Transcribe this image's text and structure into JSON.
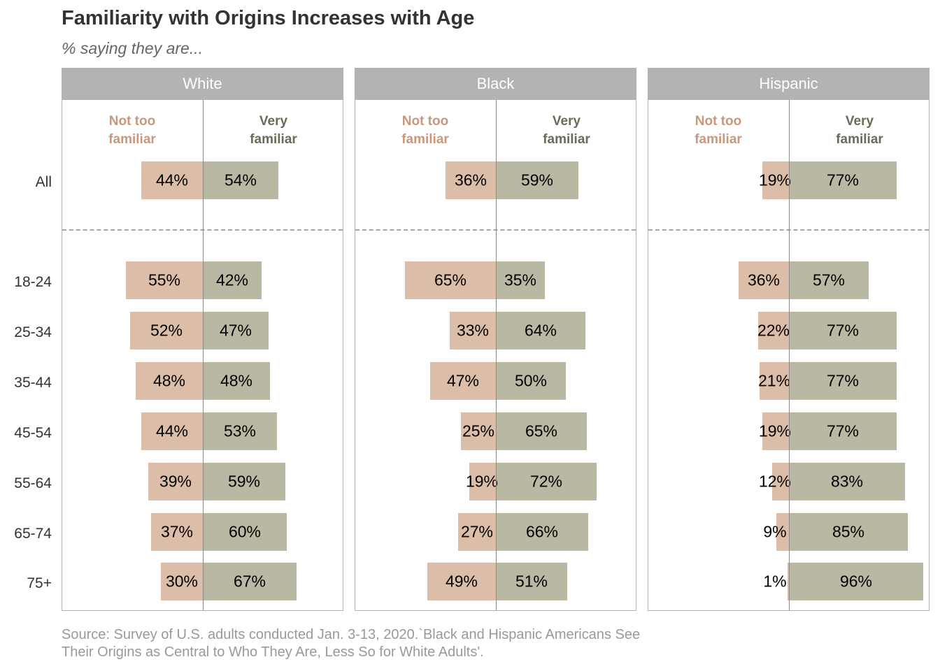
{
  "title": "Familiarity with Origins Increases with Age",
  "subtitle": "% saying they are...",
  "source_line1": "Source: Survey of U.S. adults conducted Jan. 3-13, 2020.`Black and Hispanic Americans See",
  "source_line2": "Their Origins as Central to Who They Are, Less So for White Adults'.",
  "colors": {
    "not_too_familiar": "#dcbda8",
    "very_familiar": "#b8b8a3",
    "not_too_label": "#c9987c",
    "very_label": "#6b6b5a",
    "header_bg": "#b3b3b3"
  },
  "chart_data": {
    "type": "bar",
    "orientation": "diverging-horizontal",
    "title": "Familiarity with Origins Increases with Age",
    "subtitle": "% saying they are...",
    "categories": [
      "All",
      "18-24",
      "25-34",
      "35-44",
      "45-54",
      "55-64",
      "65-74",
      "75+"
    ],
    "series_labels": {
      "negative": "Not too\nfamiliar",
      "positive": "Very\nfamiliar"
    },
    "panels": [
      {
        "name": "White",
        "not_too_familiar": [
          44,
          55,
          52,
          48,
          44,
          39,
          37,
          30
        ],
        "very_familiar": [
          54,
          42,
          47,
          48,
          53,
          59,
          60,
          67
        ]
      },
      {
        "name": "Black",
        "not_too_familiar": [
          36,
          65,
          33,
          47,
          25,
          19,
          27,
          49
        ],
        "very_familiar": [
          59,
          35,
          64,
          50,
          65,
          72,
          66,
          51
        ]
      },
      {
        "name": "Hispanic",
        "not_too_familiar": [
          19,
          36,
          22,
          21,
          19,
          12,
          9,
          1
        ],
        "very_familiar": [
          77,
          57,
          77,
          77,
          77,
          83,
          85,
          96
        ]
      }
    ]
  }
}
